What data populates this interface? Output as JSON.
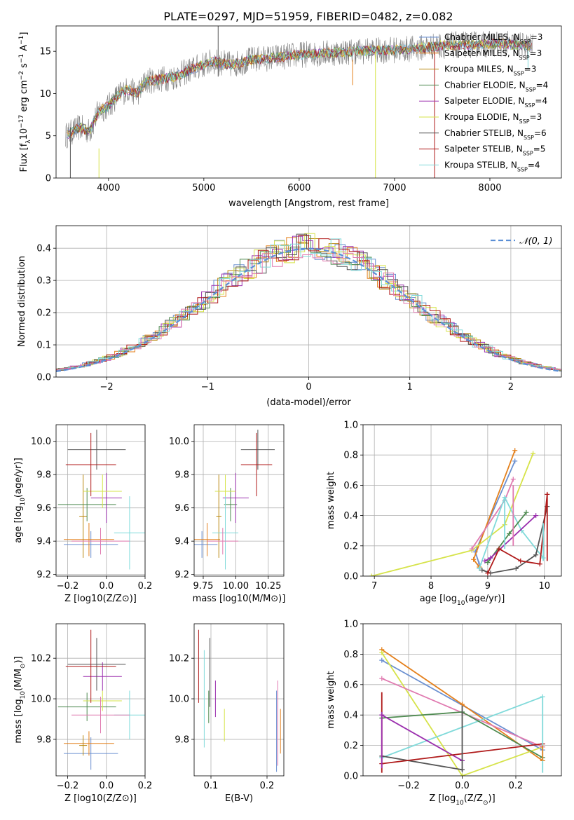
{
  "figure_title": "PLATE=0297, MJD=51959, FIBERID=0482, z=0.082",
  "colors": {
    "Chabrier MILES": "#6a8fd0",
    "Salpeter MILES": "#e4801c",
    "Kroupa MILES": "#b8860b",
    "Chabrier ELODIE": "#4e8a50",
    "Salpeter ELODIE": "#9b2fae",
    "Kroupa ELODIE": "#d6e34a",
    "Chabrier STELIB": "#555555",
    "Salpeter STELIB": "#b01a1a",
    "Kroupa STELIB": "#80dada",
    "Pink": "#e07ab0"
  },
  "chart_data": [
    {
      "id": "spectrum",
      "type": "line",
      "xlabel": "wavelength [Angstrom, rest frame]",
      "ylabel": "Flux [f_λ 10^-17 erg cm^-2 s^-1 A^-1]",
      "xlim": [
        3450,
        8750
      ],
      "ylim": [
        0,
        18
      ],
      "xticks": [
        4000,
        5000,
        6000,
        7000,
        8000
      ],
      "yticks": [
        0,
        5,
        10,
        15
      ],
      "legend_loc": "right",
      "legend": [
        {
          "label": "Chabrier MILES, N_SSP=3",
          "color_key": "Chabrier MILES"
        },
        {
          "label": "Salpeter MILES, N_SSP=3",
          "color_key": "Salpeter MILES"
        },
        {
          "label": "Kroupa MILES, N_SSP=3",
          "color_key": "Kroupa MILES"
        },
        {
          "label": "Chabrier ELODIE, N_SSP=4",
          "color_key": "Chabrier ELODIE"
        },
        {
          "label": "Salpeter ELODIE, N_SSP=4",
          "color_key": "Salpeter ELODIE"
        },
        {
          "label": "Kroupa ELODIE, N_SSP=3",
          "color_key": "Kroupa ELODIE"
        },
        {
          "label": "Chabrier STELIB, N_SSP=6",
          "color_key": "Chabrier STELIB"
        },
        {
          "label": "Salpeter STELIB, N_SSP=5",
          "color_key": "Salpeter STELIB"
        },
        {
          "label": "Kroupa STELIB, N_SSP=4",
          "color_key": "Kroupa STELIB"
        }
      ],
      "continuum": [
        [
          3550,
          5
        ],
        [
          3700,
          6
        ],
        [
          3800,
          5.5
        ],
        [
          3900,
          8
        ],
        [
          4000,
          8.5
        ],
        [
          4100,
          9.8
        ],
        [
          4200,
          10.5
        ],
        [
          4300,
          10
        ],
        [
          4400,
          11.5
        ],
        [
          4500,
          11.6
        ],
        [
          4700,
          12
        ],
        [
          4900,
          13
        ],
        [
          5100,
          13.8
        ],
        [
          5300,
          13.4
        ],
        [
          5500,
          14
        ],
        [
          5700,
          14.2
        ],
        [
          6000,
          14.6
        ],
        [
          6300,
          14.8
        ],
        [
          6600,
          15
        ],
        [
          6900,
          15.1
        ],
        [
          7200,
          15.3
        ],
        [
          7500,
          15.7
        ],
        [
          7800,
          15.8
        ],
        [
          8100,
          15.9
        ],
        [
          8450,
          15.6
        ]
      ]
    },
    {
      "id": "residuals",
      "type": "step",
      "xlabel": "(data-model)/error",
      "ylabel": "Normed distribution",
      "xlim": [
        -2.5,
        2.5
      ],
      "ylim": [
        0,
        0.47
      ],
      "xticks": [
        -2,
        -1,
        0,
        1,
        2
      ],
      "yticks": [
        0.0,
        0.1,
        0.2,
        0.3,
        0.4
      ],
      "legend": "N(0,1)",
      "legend_loc": "top-right",
      "grid": true
    },
    {
      "id": "age-vs-Z",
      "type": "errorbar",
      "xlabel": "Z [log10(Z/Z⊙)]",
      "ylabel": "age [log10(age/yr)]",
      "xlim": [
        -0.26,
        0.2
      ],
      "ylim": [
        9.19,
        10.1
      ],
      "xticks": [
        -0.2,
        0.0,
        0.2
      ],
      "yticks": [
        9.2,
        9.4,
        9.6,
        9.8,
        10.0
      ],
      "points": [
        {
          "c": "Chabrier MILES",
          "x": -0.08,
          "xe": 0.14,
          "y": 9.38,
          "ye": 0.08
        },
        {
          "c": "Salpeter MILES",
          "x": -0.09,
          "xe": 0.13,
          "y": 9.41,
          "ye": 0.1
        },
        {
          "c": "Kroupa MILES",
          "x": -0.12,
          "xe": 0.02,
          "y": 9.55,
          "ye": 0.25
        },
        {
          "c": "Chabrier ELODIE",
          "x": -0.1,
          "xe": 0.15,
          "y": 9.62,
          "ye": 0.1
        },
        {
          "c": "Salpeter ELODIE",
          "x": 0.0,
          "xe": 0.08,
          "y": 9.66,
          "ye": 0.15
        },
        {
          "c": "Kroupa ELODIE",
          "x": -0.02,
          "xe": 0.1,
          "y": 9.7,
          "ye": 0.1
        },
        {
          "c": "Chabrier STELIB",
          "x": -0.05,
          "xe": 0.15,
          "y": 9.95,
          "ye": 0.12
        },
        {
          "c": "Salpeter STELIB",
          "x": -0.08,
          "xe": 0.13,
          "y": 9.86,
          "ye": 0.19
        },
        {
          "c": "Kroupa STELIB",
          "x": 0.12,
          "xe": 0.08,
          "y": 9.45,
          "ye": 0.22
        },
        {
          "c": "Pink",
          "x": -0.03,
          "xe": 0.15,
          "y": 9.4,
          "ye": 0.08
        }
      ]
    },
    {
      "id": "age-vs-mass",
      "type": "errorbar",
      "xlabel": "mass [log10(M/M⊙)]",
      "ylabel": "",
      "xlim": [
        9.68,
        10.37
      ],
      "ylim": [
        9.19,
        10.1
      ],
      "xticks": [
        9.75,
        10.0,
        10.25
      ],
      "yticks": [
        9.2,
        9.4,
        9.6,
        9.8,
        10.0
      ],
      "points": [
        {
          "c": "Chabrier MILES",
          "x": 9.74,
          "xe": 0.12,
          "y": 9.38,
          "ye": 0.08
        },
        {
          "c": "Salpeter MILES",
          "x": 9.78,
          "xe": 0.1,
          "y": 9.41,
          "ye": 0.1
        },
        {
          "c": "Kroupa MILES",
          "x": 9.87,
          "xe": 0.02,
          "y": 9.55,
          "ye": 0.25
        },
        {
          "c": "Chabrier ELODIE",
          "x": 9.96,
          "xe": 0.05,
          "y": 9.62,
          "ye": 0.1
        },
        {
          "c": "Salpeter ELODIE",
          "x": 10.0,
          "xe": 0.1,
          "y": 9.66,
          "ye": 0.15
        },
        {
          "c": "Kroupa ELODIE",
          "x": 9.92,
          "xe": 0.08,
          "y": 9.7,
          "ye": 0.1
        },
        {
          "c": "Chabrier STELIB",
          "x": 10.17,
          "xe": 0.13,
          "y": 9.95,
          "ye": 0.12
        },
        {
          "c": "Salpeter STELIB",
          "x": 10.16,
          "xe": 0.12,
          "y": 9.86,
          "ye": 0.19
        },
        {
          "c": "Kroupa STELIB",
          "x": 9.92,
          "xe": 0.1,
          "y": 9.45,
          "ye": 0.22
        },
        {
          "c": "Pink",
          "x": 9.9,
          "xe": 0.12,
          "y": 9.4,
          "ye": 0.08
        }
      ]
    },
    {
      "id": "mass-weight-vs-age",
      "type": "line",
      "xlabel": "age [log10(age/yr)]",
      "ylabel": "mass weight",
      "xlim": [
        6.8,
        10.3
      ],
      "ylim": [
        0,
        1
      ],
      "xticks": [
        7,
        8,
        9,
        10
      ],
      "yticks": [
        0.0,
        0.2,
        0.4,
        0.6,
        0.8,
        1.0
      ],
      "series": [
        {
          "c": "Chabrier MILES",
          "x": [
            8.85,
            8.78,
            9.48
          ],
          "y": [
            0.08,
            0.16,
            0.76
          ]
        },
        {
          "c": "Salpeter MILES",
          "x": [
            8.85,
            8.75,
            9.48
          ],
          "y": [
            0.06,
            0.11,
            0.83
          ]
        },
        {
          "c": "Kroupa ELODIE",
          "x": [
            6.95,
            8.72,
            9.3,
            9.8
          ],
          "y": [
            0.0,
            0.17,
            0.34,
            0.81
          ]
        },
        {
          "c": "Pink",
          "x": [
            8.72,
            9.3,
            9.45
          ],
          "y": [
            0.18,
            0.5,
            0.64
          ]
        },
        {
          "c": "Kroupa STELIB",
          "x": [
            8.85,
            9.3,
            9.6,
            9.98
          ],
          "y": [
            0.05,
            0.52,
            0.3,
            0.12
          ]
        },
        {
          "c": "Chabrier ELODIE",
          "x": [
            9.0,
            9.38,
            9.68
          ],
          "y": [
            0.09,
            0.28,
            0.42
          ]
        },
        {
          "c": "Salpeter ELODIE",
          "x": [
            8.95,
            9.05,
            9.85
          ],
          "y": [
            0.1,
            0.12,
            0.4
          ]
        },
        {
          "c": "Chabrier STELIB",
          "x": [
            8.9,
            9.05,
            9.5,
            9.85,
            10.05
          ],
          "y": [
            0.04,
            0.02,
            0.05,
            0.14,
            0.46
          ]
        },
        {
          "c": "Salpeter STELIB",
          "x": [
            9.0,
            9.2,
            9.58,
            9.92,
            10.05
          ],
          "y": [
            0.02,
            0.18,
            0.1,
            0.08,
            0.54
          ]
        }
      ]
    },
    {
      "id": "mass-vs-Z",
      "type": "errorbar",
      "xlabel": "Z [log10(Z/Z⊙)]",
      "ylabel": "mass [log10(M/M⊙)]",
      "xlim": [
        -0.26,
        0.2
      ],
      "ylim": [
        9.62,
        10.37
      ],
      "xticks": [
        -0.2,
        0.0,
        0.2
      ],
      "yticks": [
        9.8,
        10.0,
        10.2
      ],
      "points": [
        {
          "c": "Chabrier MILES",
          "x": -0.08,
          "xe": 0.14,
          "y": 9.73,
          "ye": 0.08
        },
        {
          "c": "Salpeter MILES",
          "x": -0.09,
          "xe": 0.13,
          "y": 9.78,
          "ye": 0.06
        },
        {
          "c": "Kroupa MILES",
          "x": -0.12,
          "xe": 0.02,
          "y": 9.77,
          "ye": 0.05
        },
        {
          "c": "Chabrier ELODIE",
          "x": -0.1,
          "xe": 0.15,
          "y": 9.96,
          "ye": 0.07
        },
        {
          "c": "Salpeter ELODIE",
          "x": -0.02,
          "xe": 0.1,
          "y": 10.11,
          "ye": 0.07
        },
        {
          "c": "Kroupa ELODIE",
          "x": -0.02,
          "xe": 0.1,
          "y": 9.99,
          "ye": 0.05
        },
        {
          "c": "Chabrier STELIB",
          "x": -0.05,
          "xe": 0.15,
          "y": 10.17,
          "ye": 0.13
        },
        {
          "c": "Salpeter STELIB",
          "x": -0.08,
          "xe": 0.13,
          "y": 10.16,
          "ye": 0.18
        },
        {
          "c": "Kroupa STELIB",
          "x": 0.12,
          "xe": 0.08,
          "y": 9.92,
          "ye": 0.12
        },
        {
          "c": "Pink",
          "x": -0.03,
          "xe": 0.15,
          "y": 9.92,
          "ye": 0.09
        }
      ]
    },
    {
      "id": "mass-vs-EBV",
      "type": "errorbar",
      "xlabel": "E(B-V)",
      "ylabel": "",
      "xlim": [
        0.07,
        0.23
      ],
      "ylim": [
        9.62,
        10.37
      ],
      "xticks": [
        0.1,
        0.2
      ],
      "yticks": [
        9.8,
        10.0,
        10.2
      ],
      "points": [
        {
          "c": "Salpeter STELIB",
          "x": 0.078,
          "xe": 0,
          "y": 10.16,
          "ye": 0.18
        },
        {
          "c": "Kroupa STELIB",
          "x": 0.088,
          "xe": 0,
          "y": 10.0,
          "ye": 0.24
        },
        {
          "c": "Chabrier STELIB",
          "x": 0.098,
          "xe": 0,
          "y": 10.13,
          "ye": 0.17
        },
        {
          "c": "Chabrier ELODIE",
          "x": 0.096,
          "xe": 0,
          "y": 9.96,
          "ye": 0.08
        },
        {
          "c": "Salpeter ELODIE",
          "x": 0.108,
          "xe": 0,
          "y": 10.0,
          "ye": 0.09
        },
        {
          "c": "Kroupa ELODIE",
          "x": 0.124,
          "xe": 0,
          "y": 9.87,
          "ye": 0.08
        },
        {
          "c": "Chabrier MILES",
          "x": 0.217,
          "xe": 0,
          "y": 9.84,
          "ye": 0.2
        },
        {
          "c": "Pink",
          "x": 0.219,
          "xe": 0,
          "y": 9.88,
          "ye": 0.21
        },
        {
          "c": "Salpeter MILES",
          "x": 0.224,
          "xe": 0,
          "y": 9.84,
          "ye": 0.11
        }
      ]
    },
    {
      "id": "mass-weight-vs-Z",
      "type": "line",
      "xlabel": "Z [log10(Z/Z⊙)]",
      "ylabel": "mass weight",
      "xlim": [
        -0.37,
        0.37
      ],
      "ylim": [
        0,
        1
      ],
      "xticks": [
        -0.2,
        0.0,
        0.2
      ],
      "yticks": [
        0.0,
        0.2,
        0.4,
        0.6,
        0.8,
        1.0
      ],
      "series": [
        {
          "c": "Chabrier MILES",
          "x": [
            -0.3,
            0.3
          ],
          "y": [
            0.76,
            0.17
          ]
        },
        {
          "c": "Salpeter MILES",
          "x": [
            -0.3,
            0.0,
            0.3
          ],
          "y": [
            0.83,
            0.47,
            0.1
          ]
        },
        {
          "c": "Kroupa ELODIE",
          "x": [
            -0.3,
            0.0,
            0.3
          ],
          "y": [
            0.81,
            0.0,
            0.19
          ]
        },
        {
          "c": "Pink",
          "x": [
            -0.3,
            0.3
          ],
          "y": [
            0.64,
            0.19
          ]
        },
        {
          "c": "Kroupa STELIB",
          "x": [
            -0.3,
            0.3
          ],
          "y": [
            0.12,
            0.52
          ]
        },
        {
          "c": "Chabrier ELODIE",
          "x": [
            -0.3,
            0.0,
            0.3
          ],
          "y": [
            0.38,
            0.42,
            0.12
          ]
        },
        {
          "c": "Salpeter ELODIE",
          "x": [
            -0.3,
            0.0
          ],
          "y": [
            0.4,
            0.1
          ]
        },
        {
          "c": "Chabrier STELIB",
          "x": [
            -0.3,
            0.0
          ],
          "y": [
            0.13,
            0.04
          ]
        },
        {
          "c": "Salpeter STELIB",
          "x": [
            -0.3,
            0.3
          ],
          "y": [
            0.08,
            0.21
          ]
        }
      ]
    }
  ]
}
